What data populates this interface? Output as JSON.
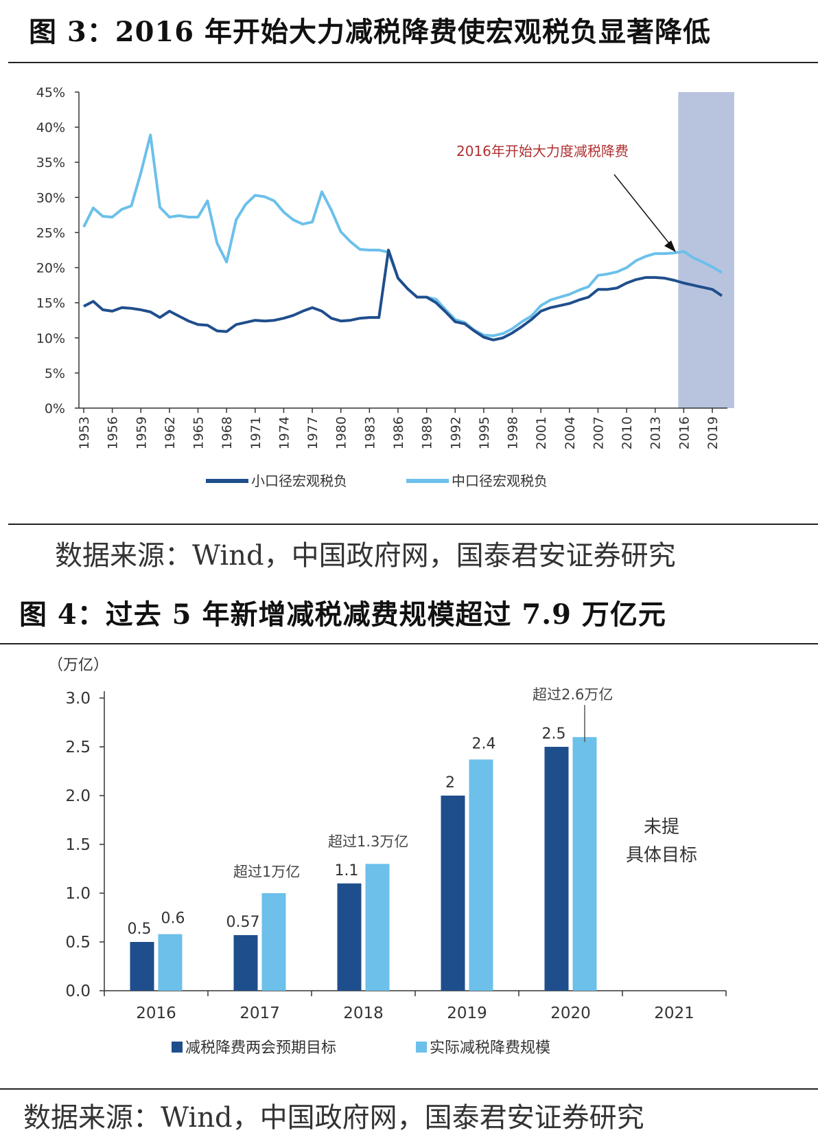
{
  "figure3": {
    "title": "图 3：2016 年开始大力减税降费使宏观税负显著降低",
    "source": "数据来源：Wind，中国政府网，国泰君安证券研究"
  },
  "figure4": {
    "title": "图 4：过去 5 年新增减税减费规模超过 7.9 万亿元",
    "source": "数据来源：Wind，中国政府网，国泰君安证券研究"
  },
  "colors": {
    "dark": "#1f4e8c",
    "light": "#6cc0ea",
    "shade": "#b8c4de",
    "annot": "#b03030"
  },
  "chart_data": [
    {
      "type": "line",
      "title": "2016年开始大力减税降费使宏观税负显著降低",
      "y_ticks": [
        "0%",
        "5%",
        "10%",
        "15%",
        "20%",
        "25%",
        "30%",
        "35%",
        "40%",
        "45%"
      ],
      "ylim": [
        0,
        45
      ],
      "xlim": [
        1953,
        2020
      ],
      "x_tick_labels": [
        "1953",
        "1956",
        "1959",
        "1962",
        "1965",
        "1968",
        "1971",
        "1974",
        "1977",
        "1980",
        "1983",
        "1986",
        "1989",
        "1992",
        "1995",
        "1998",
        "2001",
        "2004",
        "2007",
        "2010",
        "2013",
        "2016",
        "2019"
      ],
      "shaded_region": [
        2016,
        2020
      ],
      "annotation": "2016年开始大力度减税降费",
      "series": [
        {
          "name": "小口径宏观税负",
          "x": [
            1953,
            1954,
            1955,
            1956,
            1957,
            1958,
            1959,
            1960,
            1961,
            1962,
            1963,
            1964,
            1965,
            1966,
            1967,
            1968,
            1969,
            1970,
            1971,
            1972,
            1973,
            1974,
            1975,
            1976,
            1977,
            1978,
            1979,
            1980,
            1981,
            1982,
            1983,
            1984,
            1985,
            1986,
            1987,
            1988,
            1989,
            1990,
            1991,
            1992,
            1993,
            1994,
            1995,
            1996,
            1997,
            1998,
            1999,
            2000,
            2001,
            2002,
            2003,
            2004,
            2005,
            2006,
            2007,
            2008,
            2009,
            2010,
            2011,
            2012,
            2013,
            2014,
            2015,
            2016,
            2017,
            2018,
            2019,
            2020
          ],
          "values": [
            14.5,
            15.2,
            14.0,
            13.8,
            14.3,
            14.2,
            14.0,
            13.7,
            12.9,
            13.8,
            13.1,
            12.4,
            11.9,
            11.8,
            11.0,
            10.9,
            11.9,
            12.2,
            12.5,
            12.4,
            12.5,
            12.8,
            13.2,
            13.8,
            14.3,
            13.8,
            12.8,
            12.4,
            12.5,
            12.8,
            12.9,
            12.9,
            22.5,
            18.5,
            17.0,
            15.8,
            15.8,
            15.0,
            13.7,
            12.3,
            12.0,
            11.0,
            10.1,
            9.7,
            10.0,
            10.7,
            11.6,
            12.6,
            13.8,
            14.3,
            14.6,
            14.9,
            15.4,
            15.8,
            16.9,
            16.9,
            17.1,
            17.8,
            18.3,
            18.6,
            18.6,
            18.5,
            18.2,
            17.8,
            17.5,
            17.2,
            16.9,
            16.0
          ]
        },
        {
          "name": "中口径宏观税负",
          "x": [
            1953,
            1954,
            1955,
            1956,
            1957,
            1958,
            1959,
            1960,
            1961,
            1962,
            1963,
            1964,
            1965,
            1966,
            1967,
            1968,
            1969,
            1970,
            1971,
            1972,
            1973,
            1974,
            1975,
            1976,
            1977,
            1978,
            1979,
            1980,
            1981,
            1982,
            1983,
            1984,
            1985,
            1986,
            1987,
            1988,
            1989,
            1990,
            1991,
            1992,
            1993,
            1994,
            1995,
            1996,
            1997,
            1998,
            1999,
            2000,
            2001,
            2002,
            2003,
            2004,
            2005,
            2006,
            2007,
            2008,
            2009,
            2010,
            2011,
            2012,
            2013,
            2014,
            2015,
            2016,
            2017,
            2018,
            2019,
            2020
          ],
          "values": [
            25.8,
            28.5,
            27.3,
            27.2,
            28.3,
            28.8,
            33.5,
            38.9,
            28.6,
            27.2,
            27.4,
            27.2,
            27.2,
            29.5,
            23.5,
            20.8,
            26.8,
            29.0,
            30.3,
            30.1,
            29.5,
            27.9,
            26.8,
            26.2,
            26.5,
            30.8,
            28.2,
            25.1,
            23.7,
            22.6,
            22.5,
            22.5,
            22.2,
            18.5,
            17.0,
            15.8,
            15.8,
            15.5,
            14.0,
            12.6,
            12.2,
            11.1,
            10.4,
            10.3,
            10.6,
            11.3,
            12.3,
            13.1,
            14.6,
            15.4,
            15.8,
            16.2,
            16.8,
            17.3,
            18.9,
            19.1,
            19.4,
            20.0,
            21.0,
            21.6,
            22.0,
            22.0,
            22.1,
            22.3,
            21.4,
            20.8,
            20.1,
            19.3
          ]
        }
      ]
    },
    {
      "type": "bar",
      "title": "过去5年新增减税减费规模超过7.9万亿元",
      "ylabel": "（万亿）",
      "y_ticks": [
        "0.0",
        "0.5",
        "1.0",
        "1.5",
        "2.0",
        "2.5",
        "3.0"
      ],
      "ylim": [
        0,
        3.0
      ],
      "categories": [
        "2016",
        "2017",
        "2018",
        "2019",
        "2020",
        "2021"
      ],
      "series": [
        {
          "name": "减税降费两会预期目标",
          "values": [
            0.5,
            0.57,
            1.1,
            2.0,
            2.5,
            null
          ],
          "labels": [
            "0.5",
            "0.57",
            "1.1",
            "2",
            "2.5",
            ""
          ]
        },
        {
          "name": "实际减税降费规模",
          "values": [
            0.58,
            1.0,
            1.3,
            2.37,
            2.6,
            null
          ],
          "labels": [
            "0.6",
            "",
            "",
            "2.4",
            "",
            ""
          ]
        }
      ],
      "annotations": {
        "y2017": "超过1万亿",
        "y2018": "超过1.3万亿",
        "y2020": "超过2.6万亿",
        "y2021_line1": "未提",
        "y2021_line2": "具体目标"
      }
    }
  ]
}
